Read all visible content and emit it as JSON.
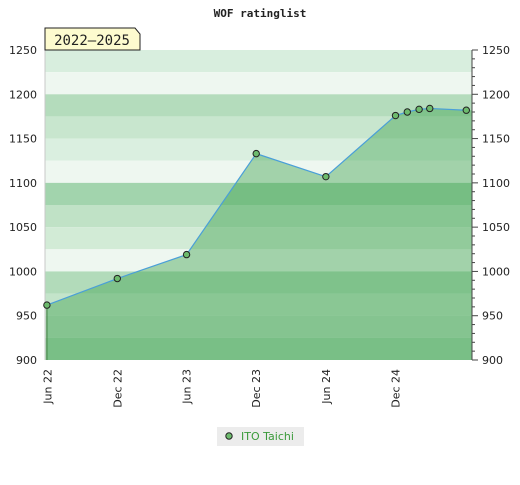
{
  "chart_data": {
    "type": "area",
    "title": "WOF ratinglist",
    "badge": "2022–2025",
    "ylim": [
      900,
      1250
    ],
    "y_ticks": [
      900,
      950,
      1000,
      1050,
      1100,
      1150,
      1200,
      1250
    ],
    "x_ticks": [
      "Jun 22",
      "Dec 22",
      "Jun 23",
      "Dec 23",
      "Jun 24",
      "Dec 24"
    ],
    "x_range": [
      "2022-05-25",
      "2025-06-20"
    ],
    "grid": "horizontal bands",
    "legend_position": "bottom-center",
    "series": [
      {
        "name": "ITO Taichi",
        "color": "#4a9fd8",
        "fill": "#3aa04a",
        "points": [
          {
            "x": "2022-05-30",
            "y": 962
          },
          {
            "x": "2022-12-01",
            "y": 992
          },
          {
            "x": "2023-06-01",
            "y": 1019
          },
          {
            "x": "2023-12-01",
            "y": 1133
          },
          {
            "x": "2024-06-01",
            "y": 1107
          },
          {
            "x": "2024-12-01",
            "y": 1176
          },
          {
            "x": "2025-01-01",
            "y": 1180
          },
          {
            "x": "2025-02-01",
            "y": 1183
          },
          {
            "x": "2025-03-01",
            "y": 1184
          },
          {
            "x": "2025-06-05",
            "y": 1182
          }
        ]
      }
    ]
  }
}
